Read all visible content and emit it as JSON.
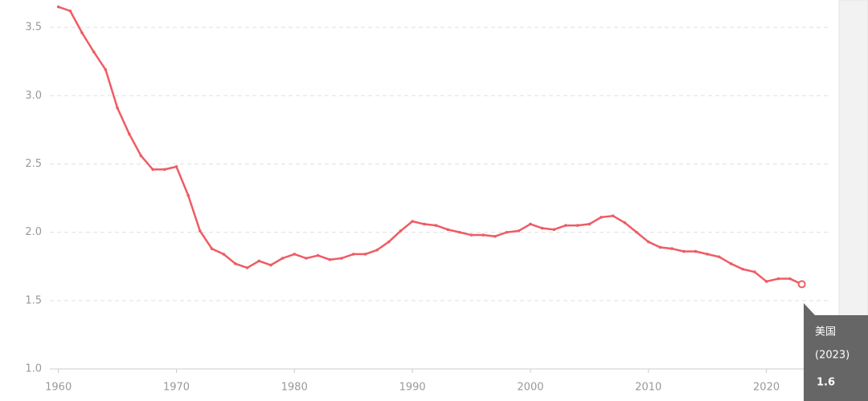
{
  "chart_data": {
    "type": "line",
    "x": [
      1960,
      1961,
      1962,
      1963,
      1964,
      1965,
      1966,
      1967,
      1968,
      1969,
      1970,
      1971,
      1972,
      1973,
      1974,
      1975,
      1976,
      1977,
      1978,
      1979,
      1980,
      1981,
      1982,
      1983,
      1984,
      1985,
      1986,
      1987,
      1988,
      1989,
      1990,
      1991,
      1992,
      1993,
      1994,
      1995,
      1996,
      1997,
      1998,
      1999,
      2000,
      2001,
      2002,
      2003,
      2004,
      2005,
      2006,
      2007,
      2008,
      2009,
      2010,
      2011,
      2012,
      2013,
      2014,
      2015,
      2016,
      2017,
      2018,
      2019,
      2020,
      2021,
      2022,
      2023
    ],
    "series": [
      {
        "name": "美国",
        "color": "#ee5c64",
        "values": [
          3.65,
          3.62,
          3.46,
          3.32,
          3.19,
          2.91,
          2.72,
          2.56,
          2.46,
          2.46,
          2.48,
          2.27,
          2.01,
          1.88,
          1.84,
          1.77,
          1.74,
          1.79,
          1.76,
          1.81,
          1.84,
          1.81,
          1.83,
          1.8,
          1.81,
          1.84,
          1.84,
          1.87,
          1.93,
          2.01,
          2.08,
          2.06,
          2.05,
          2.02,
          2.0,
          1.98,
          1.98,
          1.97,
          2.0,
          2.01,
          2.06,
          2.03,
          2.02,
          2.05,
          2.05,
          2.06,
          2.11,
          2.12,
          2.07,
          2.0,
          1.93,
          1.89,
          1.88,
          1.86,
          1.86,
          1.84,
          1.82,
          1.77,
          1.73,
          1.71,
          1.64,
          1.66,
          1.66,
          1.62
        ]
      }
    ],
    "xlim": [
      1959,
      2025
    ],
    "ylim": [
      1,
      3.7
    ],
    "xticks": [
      1960,
      1970,
      1980,
      1990,
      2000,
      2010,
      2020
    ],
    "yticks": [
      {
        "value": 1,
        "label": "1.0"
      },
      1.5,
      {
        "value": 2,
        "label": "2.0"
      },
      2.5,
      {
        "value": 3,
        "label": "3.0"
      },
      3.5
    ],
    "grid": true,
    "tooltip": {
      "name": "美国",
      "year": "(2023)",
      "value": 1.6
    }
  }
}
